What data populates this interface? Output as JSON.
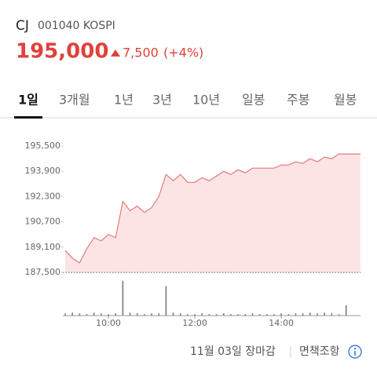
{
  "header": {
    "name": "CJ",
    "code": "001040 KOSPI"
  },
  "quote": {
    "price": {
      "value": 195000,
      "label": "195,000"
    },
    "change": {
      "value": 7500,
      "label": "7,500"
    },
    "change_pct": {
      "value": 4,
      "label": "(+4%)"
    }
  },
  "tabs": [
    "1일",
    "3개월",
    "1년",
    "3년",
    "10년",
    "일봉",
    "주봉",
    "월봉"
  ],
  "chart_data": {
    "type": "line",
    "x": [
      "09:00",
      "09:10",
      "09:20",
      "09:30",
      "09:40",
      "09:50",
      "10:00",
      "10:10",
      "10:20",
      "10:30",
      "10:40",
      "10:50",
      "11:00",
      "11:10",
      "11:20",
      "11:30",
      "11:40",
      "11:50",
      "12:00",
      "12:10",
      "12:20",
      "12:30",
      "12:40",
      "12:50",
      "13:00",
      "13:10",
      "13:20",
      "13:30",
      "13:40",
      "13:50",
      "14:00",
      "14:10",
      "14:20",
      "14:30",
      "14:40",
      "14:50",
      "15:00",
      "15:10",
      "15:20",
      "15:30",
      "15:50"
    ],
    "values": [
      188900,
      188400,
      188100,
      189000,
      189700,
      189500,
      189900,
      189700,
      192000,
      191400,
      191700,
      191300,
      191600,
      192300,
      193700,
      193300,
      193700,
      193200,
      193200,
      193500,
      193300,
      193600,
      193900,
      193700,
      194000,
      193800,
      194100,
      194100,
      194100,
      194100,
      194300,
      194300,
      194500,
      194400,
      194700,
      194500,
      194800,
      194700,
      195000,
      195000,
      195000
    ],
    "volume": [
      3,
      4,
      3,
      2,
      4,
      3,
      2,
      3,
      47,
      4,
      3,
      2,
      3,
      3,
      40,
      4,
      3,
      2,
      2,
      3,
      2,
      2,
      3,
      2,
      2,
      2,
      3,
      2,
      2,
      2,
      3,
      2,
      3,
      3,
      4,
      3,
      4,
      3,
      2,
      14,
      0
    ],
    "color": "#e07a7a",
    "fill": "#fce4e4",
    "prev_close": 187500,
    "xlim": [
      "09:00",
      "15:50"
    ],
    "xticks": [
      "10:00",
      "12:00",
      "14:00"
    ],
    "ylim": [
      187500,
      195500
    ],
    "yticks": [
      {
        "value": 187500,
        "label": "187,500"
      },
      {
        "value": 189100,
        "label": "189,100"
      },
      {
        "value": 190700,
        "label": "190,700"
      },
      {
        "value": 192300,
        "label": "192,300"
      },
      {
        "value": 193900,
        "label": "193,900"
      },
      {
        "value": 195500,
        "label": "195,500"
      }
    ],
    "volume_ylim": [
      0,
      50
    ]
  },
  "footer": {
    "date": "11월 03일 장마감",
    "disclaimer": "면책조항"
  }
}
